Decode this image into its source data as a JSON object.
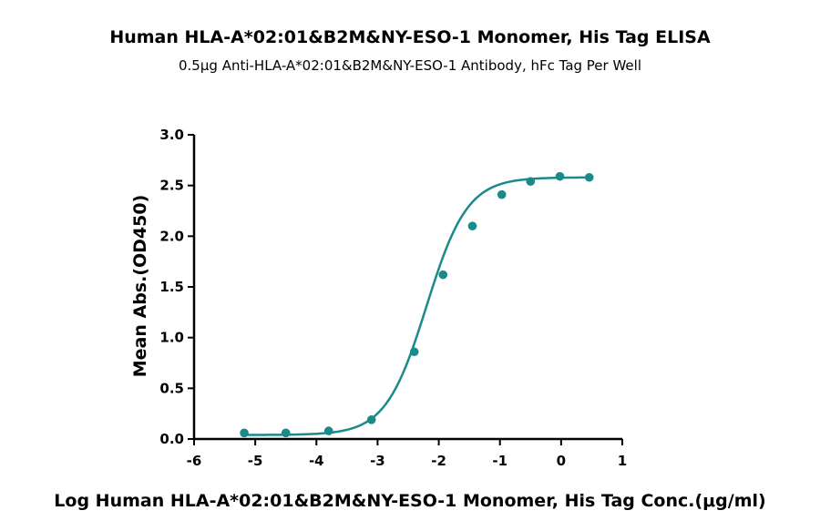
{
  "chart_data": {
    "type": "scatter",
    "title": "Human HLA-A*02:01&B2M&NY-ESO-1 Monomer, His Tag ELISA",
    "subtitle": "0.5μg Anti-HLA-A*02:01&B2M&NY-ESO-1 Antibody, hFc Tag Per Well",
    "xlabel": "Log Human HLA-A*02:01&B2M&NY-ESO-1 Monomer, His Tag Conc.(μg/ml)",
    "ylabel": "Mean Abs.(OD450)",
    "xlim": [
      -6,
      1
    ],
    "ylim": [
      0,
      3.0
    ],
    "x_ticks": [
      "-6",
      "-5",
      "-4",
      "-3",
      "-2",
      "-1",
      "0",
      "1"
    ],
    "y_ticks": [
      "0.0",
      "0.5",
      "1.0",
      "1.5",
      "2.0",
      "2.5",
      "3.0"
    ],
    "grid": false,
    "series": [
      {
        "color": "#1a8a8a",
        "points": [
          {
            "x": -5.18,
            "y": 0.06
          },
          {
            "x": -4.5,
            "y": 0.06
          },
          {
            "x": -3.8,
            "y": 0.08
          },
          {
            "x": -3.1,
            "y": 0.19
          },
          {
            "x": -2.4,
            "y": 0.86
          },
          {
            "x": -1.93,
            "y": 1.62
          },
          {
            "x": -1.45,
            "y": 2.1
          },
          {
            "x": -0.97,
            "y": 2.41
          },
          {
            "x": -0.5,
            "y": 2.54
          },
          {
            "x": -0.02,
            "y": 2.59
          },
          {
            "x": 0.46,
            "y": 2.58
          }
        ],
        "fit": {
          "model": "4PL",
          "bottom": 0.04,
          "top": 2.58,
          "logEC50": -2.2,
          "hill": 1.3
        }
      }
    ]
  }
}
